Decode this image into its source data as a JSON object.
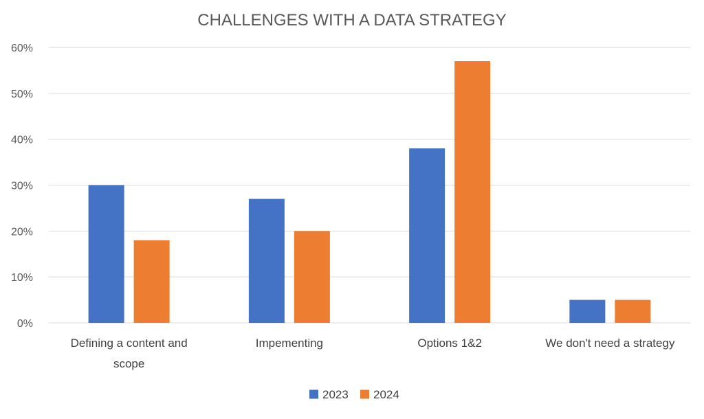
{
  "chart_data": {
    "type": "bar",
    "title": "CHALLENGES WITH A DATA STRATEGY",
    "xlabel": "",
    "ylabel": "",
    "categories": [
      [
        "Defining a content and",
        "scope"
      ],
      [
        "Impementing"
      ],
      [
        "Options 1&2"
      ],
      [
        "We don't need a strategy"
      ]
    ],
    "series": [
      {
        "name": "2023",
        "color": "#4472c4",
        "values": [
          30,
          27,
          38,
          5
        ]
      },
      {
        "name": "2024",
        "color": "#ed7d31",
        "values": [
          18,
          20,
          57,
          5
        ]
      }
    ],
    "ylim": [
      0,
      60
    ],
    "yticks": [
      "0%",
      "10%",
      "20%",
      "30%",
      "40%",
      "50%",
      "60%"
    ],
    "grid": true,
    "legend_position": "bottom"
  }
}
